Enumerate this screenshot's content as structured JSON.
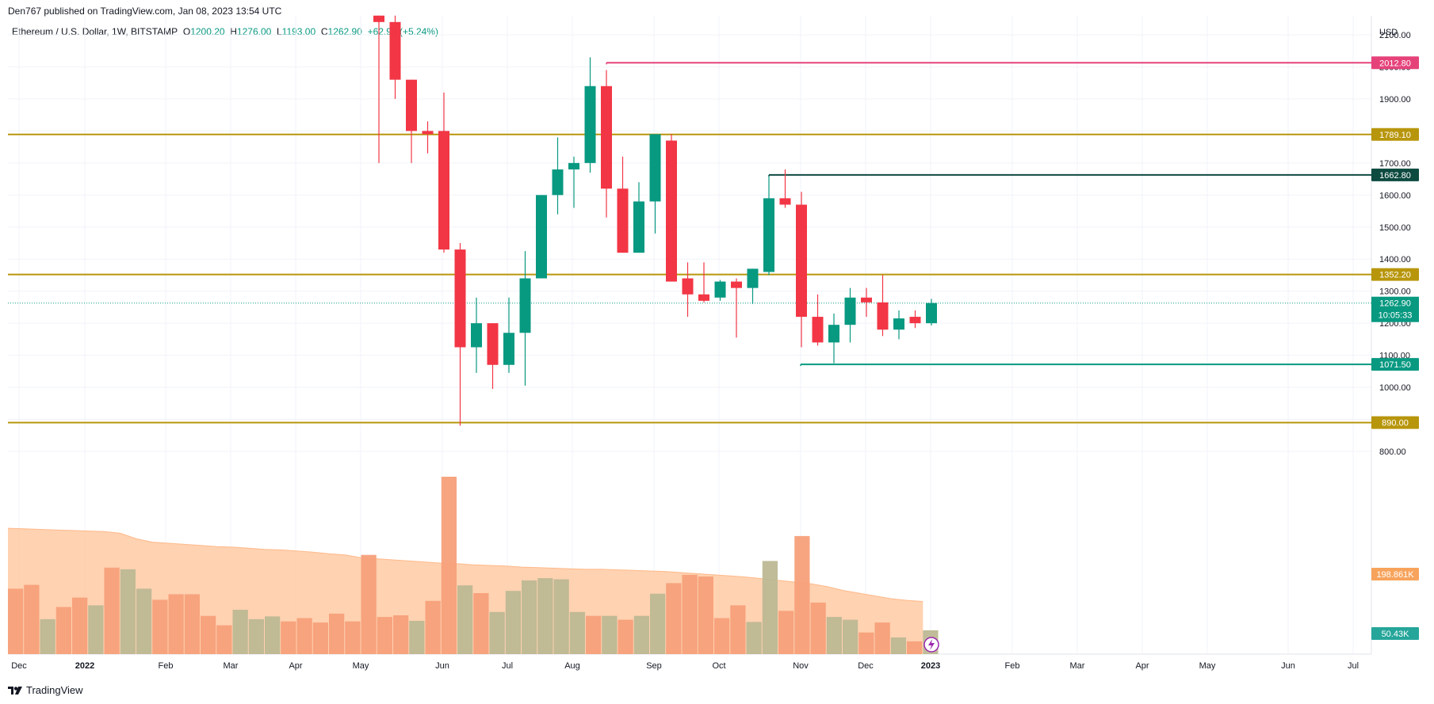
{
  "header": {
    "attribution": "Den767 published on TradingView.com, Jan 08, 2023 13:54 UTC",
    "symbol": "Ethereum / U.S. Dollar, 1W, BITSTAMP",
    "ohlc": {
      "o_label": "O",
      "o": "1200.20",
      "h_label": "H",
      "h": "1276.00",
      "l_label": "L",
      "l": "1193.00",
      "c_label": "C",
      "c": "1262.90",
      "chg": "+62.90 (+5.24%)"
    }
  },
  "footer": {
    "brand": "TradingView"
  },
  "chart_data": {
    "type": "candlestick",
    "currency": "USD",
    "y_axis_ticks": [
      800,
      900,
      1000,
      1100,
      1200,
      1300,
      1400,
      1500,
      1600,
      1700,
      1800,
      1900,
      2000,
      2100
    ],
    "y_tick_labels": [
      "800.00",
      "900.00",
      "1000.00",
      "1100.00",
      "1200.00",
      "1300.00",
      "1400.00",
      "1500.00",
      "1600.00",
      "1700.00",
      "1800.00",
      "1900.00",
      "2000.00",
      "2100.00"
    ],
    "x_axis_labels": [
      "Dec",
      "2022",
      "Feb",
      "Mar",
      "Apr",
      "May",
      "Jun",
      "Jul",
      "Aug",
      "Sep",
      "Oct",
      "Nov",
      "Dec",
      "2023",
      "Feb",
      "Mar",
      "Apr",
      "May",
      "Jun",
      "Jul"
    ],
    "candles": [
      {
        "o": 2160,
        "h": 2160,
        "l": 1700,
        "c": 2140
      },
      {
        "o": 2140,
        "h": 2160,
        "l": 1900,
        "c": 1960
      },
      {
        "o": 1960,
        "h": 1960,
        "l": 1700,
        "c": 1800
      },
      {
        "o": 1800,
        "h": 1830,
        "l": 1730,
        "c": 1790
      },
      {
        "o": 1800,
        "h": 1920,
        "l": 1420,
        "c": 1430
      },
      {
        "o": 1430,
        "h": 1450,
        "l": 880,
        "c": 1125
      },
      {
        "o": 1125,
        "h": 1280,
        "l": 1045,
        "c": 1200
      },
      {
        "o": 1200,
        "h": 1200,
        "l": 995,
        "c": 1070
      },
      {
        "o": 1070,
        "h": 1280,
        "l": 1045,
        "c": 1170
      },
      {
        "o": 1170,
        "h": 1425,
        "l": 1005,
        "c": 1340
      },
      {
        "o": 1340,
        "h": 1600,
        "l": 1340,
        "c": 1600
      },
      {
        "o": 1600,
        "h": 1780,
        "l": 1540,
        "c": 1680
      },
      {
        "o": 1680,
        "h": 1720,
        "l": 1560,
        "c": 1700
      },
      {
        "o": 1700,
        "h": 2030,
        "l": 1670,
        "c": 1940
      },
      {
        "o": 1940,
        "h": 1990,
        "l": 1530,
        "c": 1620
      },
      {
        "o": 1620,
        "h": 1720,
        "l": 1420,
        "c": 1420
      },
      {
        "o": 1420,
        "h": 1640,
        "l": 1420,
        "c": 1580
      },
      {
        "o": 1580,
        "h": 1790,
        "l": 1480,
        "c": 1790
      },
      {
        "o": 1770,
        "h": 1790,
        "l": 1330,
        "c": 1330
      },
      {
        "o": 1340,
        "h": 1390,
        "l": 1220,
        "c": 1290
      },
      {
        "o": 1290,
        "h": 1390,
        "l": 1265,
        "c": 1270
      },
      {
        "o": 1280,
        "h": 1335,
        "l": 1270,
        "c": 1330
      },
      {
        "o": 1330,
        "h": 1340,
        "l": 1155,
        "c": 1310
      },
      {
        "o": 1310,
        "h": 1370,
        "l": 1260,
        "c": 1370
      },
      {
        "o": 1360,
        "h": 1660,
        "l": 1350,
        "c": 1590
      },
      {
        "o": 1590,
        "h": 1680,
        "l": 1560,
        "c": 1570
      },
      {
        "o": 1570,
        "h": 1610,
        "l": 1125,
        "c": 1220
      },
      {
        "o": 1220,
        "h": 1290,
        "l": 1130,
        "c": 1140
      },
      {
        "o": 1140,
        "h": 1230,
        "l": 1075,
        "c": 1195
      },
      {
        "o": 1195,
        "h": 1310,
        "l": 1140,
        "c": 1280
      },
      {
        "o": 1280,
        "h": 1310,
        "l": 1220,
        "c": 1265
      },
      {
        "o": 1265,
        "h": 1350,
        "l": 1160,
        "c": 1180
      },
      {
        "o": 1180,
        "h": 1240,
        "l": 1150,
        "c": 1215
      },
      {
        "o": 1220,
        "h": 1240,
        "l": 1185,
        "c": 1200
      },
      {
        "o": 1200,
        "h": 1276,
        "l": 1193,
        "c": 1263
      }
    ],
    "volume": [
      {
        "v": 1.18,
        "up": false
      },
      {
        "v": 1.25,
        "up": false
      },
      {
        "v": 0.63,
        "up": true
      },
      {
        "v": 0.85,
        "up": false
      },
      {
        "v": 1.02,
        "up": false
      },
      {
        "v": 0.88,
        "up": true
      },
      {
        "v": 1.56,
        "up": false
      },
      {
        "v": 1.53,
        "up": true
      },
      {
        "v": 1.18,
        "up": true
      },
      {
        "v": 0.98,
        "up": false
      },
      {
        "v": 1.08,
        "up": false
      },
      {
        "v": 1.08,
        "up": false
      },
      {
        "v": 0.69,
        "up": false
      },
      {
        "v": 0.52,
        "up": false
      },
      {
        "v": 0.8,
        "up": true
      },
      {
        "v": 0.63,
        "up": true
      },
      {
        "v": 0.68,
        "up": true
      },
      {
        "v": 0.59,
        "up": false
      },
      {
        "v": 0.65,
        "up": false
      },
      {
        "v": 0.57,
        "up": false
      },
      {
        "v": 0.73,
        "up": false
      },
      {
        "v": 0.59,
        "up": false
      },
      {
        "v": 1.79,
        "up": false
      },
      {
        "v": 0.67,
        "up": false
      },
      {
        "v": 0.7,
        "up": false
      },
      {
        "v": 0.6,
        "up": true
      },
      {
        "v": 0.96,
        "up": false
      },
      {
        "v": 3.2,
        "up": false
      },
      {
        "v": 1.24,
        "up": true
      },
      {
        "v": 1.1,
        "up": false
      },
      {
        "v": 0.76,
        "up": true
      },
      {
        "v": 1.14,
        "up": true
      },
      {
        "v": 1.33,
        "up": true
      },
      {
        "v": 1.37,
        "up": true
      },
      {
        "v": 1.35,
        "up": true
      },
      {
        "v": 0.76,
        "up": true
      },
      {
        "v": 0.69,
        "up": false
      },
      {
        "v": 0.69,
        "up": true
      },
      {
        "v": 0.62,
        "up": false
      },
      {
        "v": 0.69,
        "up": true
      },
      {
        "v": 1.09,
        "up": true
      },
      {
        "v": 1.28,
        "up": false
      },
      {
        "v": 1.43,
        "up": false
      },
      {
        "v": 1.4,
        "up": false
      },
      {
        "v": 0.65,
        "up": false
      },
      {
        "v": 0.88,
        "up": false
      },
      {
        "v": 0.58,
        "up": true
      },
      {
        "v": 1.68,
        "up": true
      },
      {
        "v": 0.78,
        "up": false
      },
      {
        "v": 2.13,
        "up": false
      },
      {
        "v": 0.93,
        "up": false
      },
      {
        "v": 0.67,
        "up": true
      },
      {
        "v": 0.62,
        "up": true
      },
      {
        "v": 0.39,
        "up": false
      },
      {
        "v": 0.57,
        "up": false
      },
      {
        "v": 0.3,
        "up": true
      },
      {
        "v": 0.23,
        "up": false
      },
      {
        "v": 0.43,
        "up": true
      }
    ],
    "volume_ma": [
      2.27,
      2.26,
      2.25,
      2.24,
      2.23,
      2.22,
      2.21,
      2.18,
      2.08,
      2.02,
      2.0,
      1.98,
      1.96,
      1.94,
      1.93,
      1.91,
      1.89,
      1.88,
      1.86,
      1.84,
      1.81,
      1.79,
      1.74,
      1.72,
      1.7,
      1.68,
      1.66,
      1.64,
      1.63,
      1.61,
      1.6,
      1.59,
      1.57,
      1.56,
      1.55,
      1.54,
      1.53,
      1.53,
      1.52,
      1.51,
      1.5,
      1.49,
      1.47,
      1.45,
      1.43,
      1.41,
      1.39,
      1.36,
      1.33,
      1.3,
      1.27,
      1.22,
      1.15,
      1.1,
      1.05,
      1.0,
      0.97,
      0.95
    ],
    "horizontal_levels": [
      {
        "price": 2012.8,
        "label": "2012.80",
        "color": "#e6427a",
        "type": "ray"
      },
      {
        "price": 1789.1,
        "label": "1789.10",
        "color": "#b8960c",
        "type": "line"
      },
      {
        "price": 1662.8,
        "label": "1662.80",
        "color": "#0d4a40",
        "type": "ray"
      },
      {
        "price": 1352.2,
        "label": "1352.20",
        "color": "#b8960c",
        "type": "line"
      },
      {
        "price": 1071.5,
        "label": "1071.50",
        "color": "#089981",
        "type": "ray"
      },
      {
        "price": 890.0,
        "label": "890.00",
        "color": "#b8960c",
        "type": "line"
      }
    ],
    "current_price": {
      "price": 1262.9,
      "label": "1262.90",
      "countdown": "10:05:33",
      "color": "#089981"
    },
    "volume_ma_label": {
      "label": "198.861K",
      "color": "#f7a35c"
    },
    "volume_label": {
      "label": "50.43K",
      "color": "#26a69a"
    },
    "colors": {
      "up": "#089981",
      "down": "#f23645",
      "grid": "#f0f3fa",
      "axis_text": "#131722"
    }
  }
}
